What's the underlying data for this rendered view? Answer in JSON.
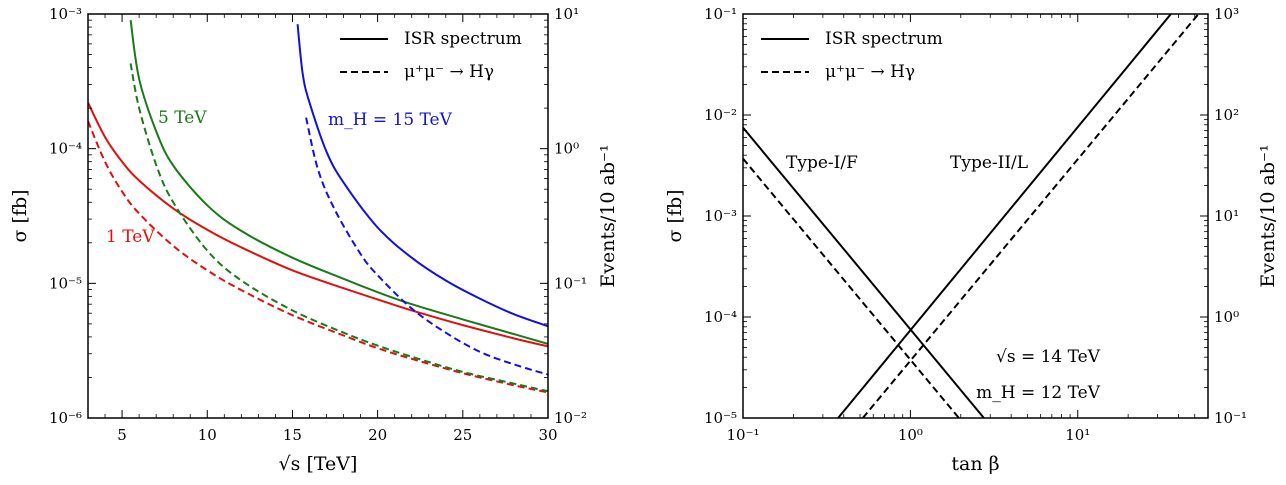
{
  "chart_data": [
    {
      "type": "line",
      "xlabel": "√s [TeV]",
      "ylabel": "σ [fb]",
      "y2label": "Events/10 ab⁻¹",
      "xscale": "linear",
      "yscale": "log",
      "xlim": [
        3,
        30
      ],
      "ylim": [
        1e-06,
        0.001
      ],
      "y2lim": [
        0.01,
        10
      ],
      "xticks": [
        5,
        10,
        15,
        20,
        25,
        30
      ],
      "xticklabels": [
        "5",
        "10",
        "15",
        "20",
        "25",
        "30"
      ],
      "yticks": [
        1e-06,
        1e-05,
        0.0001,
        0.001
      ],
      "yticklabels": [
        "10⁻⁶",
        "10⁻⁵",
        "10⁻⁴",
        "10⁻³"
      ],
      "y2ticks": [
        0.01,
        0.1,
        1,
        10
      ],
      "y2ticklabels": [
        "10⁻²",
        "10⁻¹",
        "10⁰",
        "10¹"
      ],
      "legend": {
        "position": "top-right",
        "entries": [
          {
            "label": "ISR spectrum",
            "style": "solid"
          },
          {
            "label": "μ⁺μ⁻ → Hγ",
            "style": "dashed"
          }
        ]
      },
      "annotations": [
        {
          "text": "5 TeV",
          "color": "#1a7a1a"
        },
        {
          "text": "m_H = 15 TeV",
          "color": "#1010e0"
        },
        {
          "text": "1 TeV",
          "color": "#e01010"
        }
      ],
      "series": [
        {
          "name": "ISR spectrum, 1 TeV",
          "color": "#e01010",
          "style": "solid",
          "x": [
            3,
            4,
            5,
            6,
            8,
            10,
            12,
            15,
            18,
            20,
            22,
            25,
            28,
            30
          ],
          "y": [
            0.00022,
            0.000122,
            8e-05,
            5.8e-05,
            3.6e-05,
            2.5e-05,
            1.85e-05,
            1.25e-05,
            9.2e-06,
            7.6e-06,
            6.3e-06,
            4.9e-06,
            3.9e-06,
            3.4e-06
          ]
        },
        {
          "name": "μ⁺μ⁻ → Hγ, 1 TeV",
          "color": "#e01010",
          "style": "dashed",
          "x": [
            3,
            4,
            5,
            6,
            8,
            10,
            12,
            15,
            18,
            20,
            22,
            25,
            28,
            30
          ],
          "y": [
            0.00016,
            8e-05,
            4.8e-05,
            3.3e-05,
            1.9e-05,
            1.25e-05,
            8.9e-06,
            5.8e-06,
            4.1e-06,
            3.3e-06,
            2.75e-06,
            2.15e-06,
            1.75e-06,
            1.55e-06
          ]
        },
        {
          "name": "ISR spectrum, 5 TeV",
          "color": "#1a7a1a",
          "style": "solid",
          "x": [
            5.5,
            6,
            7,
            8,
            10,
            12,
            15,
            18,
            20,
            22,
            25,
            28,
            30
          ],
          "y": [
            0.0009,
            0.00033,
            0.000135,
            7.5e-05,
            3.8e-05,
            2.45e-05,
            1.55e-05,
            1.08e-05,
            8.6e-06,
            7e-06,
            5.4e-06,
            4.2e-06,
            3.55e-06
          ]
        },
        {
          "name": "μ⁺μ⁻ → Hγ, 5 TeV",
          "color": "#1a7a1a",
          "style": "dashed",
          "x": [
            5.5,
            6,
            7,
            8,
            10,
            12,
            15,
            18,
            20,
            22,
            25,
            28,
            30
          ],
          "y": [
            0.00043,
            0.0002,
            7.6e-05,
            4e-05,
            1.75e-05,
            1.05e-05,
            6.3e-06,
            4.3e-06,
            3.45e-06,
            2.85e-06,
            2.2e-06,
            1.8e-06,
            1.58e-06
          ]
        },
        {
          "name": "ISR spectrum, 15 TeV",
          "color": "#1010e0",
          "style": "solid",
          "x": [
            15.3,
            15.6,
            16,
            17,
            18,
            20,
            22,
            24,
            26,
            28,
            30
          ],
          "y": [
            0.00084,
            0.00036,
            0.00022,
            9.5e-05,
            5.6e-05,
            2.6e-05,
            1.55e-05,
            1.05e-05,
            7.7e-06,
            5.9e-06,
            4.8e-06
          ]
        },
        {
          "name": "μ⁺μ⁻ → Hγ, 15 TeV",
          "color": "#1010e0",
          "style": "dashed",
          "x": [
            15.8,
            16.5,
            17.5,
            19,
            20,
            22,
            24,
            26,
            28,
            30
          ],
          "y": [
            0.00017,
            7e-05,
            3.5e-05,
            1.65e-05,
            1.15e-05,
            6.5e-06,
            4.3e-06,
            3.1e-06,
            2.5e-06,
            2.1e-06
          ]
        }
      ]
    },
    {
      "type": "line",
      "xlabel": "tan β",
      "ylabel": "σ [fb]",
      "y2label": "Events/10 ab⁻¹",
      "xscale": "log",
      "yscale": "log",
      "xlim": [
        0.1,
        60
      ],
      "ylim": [
        1e-05,
        0.1
      ],
      "y2lim": [
        0.1,
        1000
      ],
      "xticks": [
        0.1,
        1,
        10
      ],
      "xticklabels": [
        "10⁻¹",
        "10⁰",
        "10¹"
      ],
      "yticks": [
        1e-05,
        0.0001,
        0.001,
        0.01,
        0.1
      ],
      "yticklabels": [
        "10⁻⁵",
        "10⁻⁴",
        "10⁻³",
        "10⁻²",
        "10⁻¹"
      ],
      "y2ticks": [
        0.1,
        1,
        10,
        100,
        1000
      ],
      "y2ticklabels": [
        "10⁻¹",
        "10⁰",
        "10¹",
        "10²",
        "10³"
      ],
      "legend": {
        "position": "top-left",
        "entries": [
          {
            "label": "ISR spectrum",
            "style": "solid"
          },
          {
            "label": "μ⁺μ⁻ → Hγ",
            "style": "dashed"
          }
        ]
      },
      "annotations": [
        {
          "text": "Type-I/F"
        },
        {
          "text": "Type-II/L"
        },
        {
          "text": "√s = 14 TeV"
        },
        {
          "text": "m_H = 12 TeV"
        }
      ],
      "series": [
        {
          "name": "ISR spectrum, Type-I/F",
          "color": "#000000",
          "style": "solid",
          "x": [
            0.1,
            2.75
          ],
          "y": [
            0.0075,
            1e-05
          ]
        },
        {
          "name": "μ⁺μ⁻ → Hγ, Type-I/F",
          "color": "#000000",
          "style": "dashed",
          "x": [
            0.1,
            1.95
          ],
          "y": [
            0.0037,
            1e-05
          ]
        },
        {
          "name": "ISR spectrum, Type-II/L",
          "color": "#000000",
          "style": "solid",
          "x": [
            0.37,
            36
          ],
          "y": [
            1e-05,
            0.1
          ]
        },
        {
          "name": "μ⁺μ⁻ → Hγ, Type-II/L",
          "color": "#000000",
          "style": "dashed",
          "x": [
            0.52,
            60
          ],
          "y": [
            1e-05,
            0.13
          ]
        }
      ]
    }
  ]
}
